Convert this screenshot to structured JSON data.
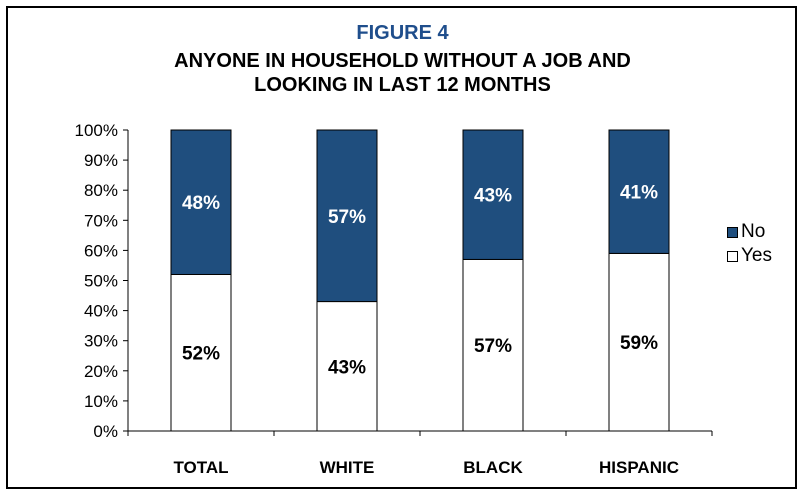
{
  "chart_data": {
    "type": "bar",
    "stacked": true,
    "figure_label": "FIGURE 4",
    "title_lines": [
      "ANYONE IN HOUSEHOLD WITHOUT A JOB AND",
      "LOOKING IN LAST 12 MONTHS"
    ],
    "title": "ANYONE IN HOUSEHOLD WITHOUT A JOB AND LOOKING IN LAST 12 MONTHS",
    "categories": [
      "TOTAL",
      "WHITE",
      "BLACK",
      "HISPANIC"
    ],
    "series": [
      {
        "name": "Yes",
        "values": [
          52,
          43,
          57,
          59
        ],
        "labels": [
          "52%",
          "43%",
          "57%",
          "59%"
        ],
        "color": "#ffffff"
      },
      {
        "name": "No",
        "values": [
          48,
          57,
          43,
          41
        ],
        "labels": [
          "48%",
          "57%",
          "43%",
          "41%"
        ],
        "color": "#1f4e7e"
      }
    ],
    "legend": {
      "position": "right",
      "entries": [
        {
          "name": "No",
          "color": "#1f4e7e"
        },
        {
          "name": "Yes",
          "color": "#ffffff"
        }
      ]
    },
    "ylim": [
      0,
      100
    ],
    "yticks": [
      0,
      10,
      20,
      30,
      40,
      50,
      60,
      70,
      80,
      90,
      100
    ],
    "ytick_labels": [
      "0%",
      "10%",
      "20%",
      "30%",
      "40%",
      "50%",
      "60%",
      "70%",
      "80%",
      "90%",
      "100%"
    ],
    "grid": false,
    "xlabel": "",
    "ylabel": ""
  }
}
